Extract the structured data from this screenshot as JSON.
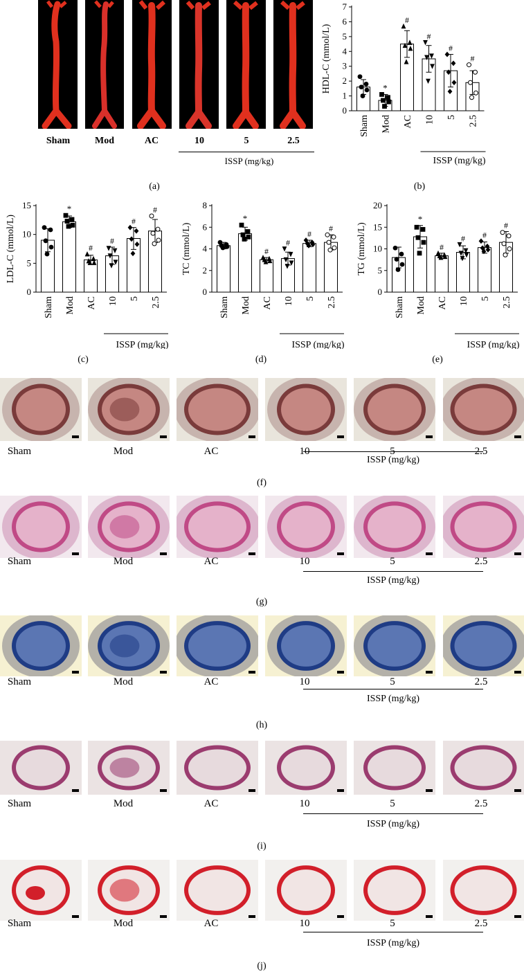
{
  "groups": [
    "Sham",
    "Mod",
    "AC",
    "10",
    "5",
    "2.5"
  ],
  "issp_label": "ISSP (mg/kg)",
  "panels": {
    "a": "(a)",
    "b": "(b)",
    "c": "(c)",
    "d": "(d)",
    "e": "(e)",
    "f": "(f)",
    "g": "(g)",
    "h": "(h)",
    "i": "(i)",
    "j": "(j)"
  },
  "markers": {
    "mod": "*",
    "treated": "#"
  },
  "colors": {
    "aorta_red": "#e0301e",
    "oil_red_bg": "#e6e2da",
    "he_pink": "#d76a9b",
    "masson_blue": "#2b3f8a",
    "masson_bg": "#f3efd0",
    "elastic_purple": "#9b3c6f",
    "picro_red": "#d21f2a"
  },
  "chart_data": [
    {
      "id": "b",
      "type": "bar",
      "categories": [
        "Sham",
        "Mod",
        "AC",
        "10",
        "5",
        "2.5"
      ],
      "values": [
        1.6,
        0.7,
        4.5,
        3.5,
        2.7,
        1.9
      ],
      "errors": [
        0.5,
        0.4,
        0.9,
        0.9,
        1.1,
        0.8
      ],
      "points": [
        [
          2.3,
          1.8,
          1.6,
          1.4,
          1.0
        ],
        [
          1.1,
          0.9,
          0.7,
          0.6,
          0.3
        ],
        [
          5.7,
          4.6,
          4.4,
          4.2,
          3.3
        ],
        [
          4.6,
          3.7,
          3.6,
          3.0,
          2.0
        ],
        [
          3.8,
          3.2,
          2.6,
          1.9,
          1.3
        ],
        [
          3.1,
          2.6,
          1.9,
          1.2,
          0.9
        ]
      ],
      "markers": [
        "",
        "*",
        "#",
        "#",
        "#",
        "#"
      ],
      "ylabel": "HDL-C (mmol/L)",
      "ylim": [
        0,
        7
      ],
      "yticks": [
        "0",
        "1",
        "2",
        "3",
        "4",
        "5",
        "6",
        "7"
      ],
      "xlabel": "",
      "issp_label": "ISSP (mg/kg)"
    },
    {
      "id": "c",
      "type": "bar",
      "categories": [
        "Sham",
        "Mod",
        "AC",
        "10",
        "5",
        "2.5"
      ],
      "values": [
        9.0,
        12.2,
        5.6,
        6.3,
        9.3,
        10.6
      ],
      "errors": [
        2.0,
        1.0,
        0.8,
        1.5,
        1.9,
        2.0
      ],
      "points": [
        [
          11.2,
          10.8,
          8.9,
          7.8,
          6.6
        ],
        [
          13.3,
          12.6,
          12.3,
          11.6,
          11.4
        ],
        [
          6.6,
          5.8,
          5.4,
          5.1,
          5.1
        ],
        [
          7.6,
          7.2,
          6.3,
          5.2,
          4.6
        ],
        [
          11.2,
          10.6,
          9.2,
          8.3,
          6.7
        ],
        [
          13.2,
          10.9,
          10.2,
          9.0,
          8.4
        ]
      ],
      "markers": [
        "",
        "*",
        "#",
        "#",
        "#",
        "#"
      ],
      "ylabel": "LDL-C (mmol/L)",
      "ylim": [
        0,
        15
      ],
      "yticks": [
        "0",
        "5",
        "10",
        "15"
      ],
      "xlabel": "",
      "issp_label": "ISSP (mg/kg)"
    },
    {
      "id": "d",
      "type": "bar",
      "categories": [
        "Sham",
        "Mod",
        "AC",
        "10",
        "5",
        "2.5"
      ],
      "values": [
        4.3,
        5.4,
        3.0,
        3.1,
        4.5,
        4.6
      ],
      "errors": [
        0.3,
        0.6,
        0.2,
        0.6,
        0.3,
        0.7
      ],
      "points": [
        [
          4.6,
          4.4,
          4.3,
          4.2,
          4.1
        ],
        [
          6.2,
          5.6,
          5.3,
          5.1,
          4.9
        ],
        [
          3.2,
          3.1,
          3.0,
          2.9,
          2.8
        ],
        [
          4.0,
          3.5,
          3.0,
          2.7,
          2.4
        ],
        [
          4.8,
          4.6,
          4.5,
          4.4,
          4.3
        ],
        [
          5.3,
          5.1,
          4.6,
          4.1,
          3.9
        ]
      ],
      "markers": [
        "",
        "*",
        "#",
        "#",
        "#",
        "#"
      ],
      "ylabel": "TC (mmol/L)",
      "ylim": [
        0,
        8
      ],
      "yticks": [
        "0",
        "2",
        "4",
        "6",
        "8"
      ],
      "xlabel": "",
      "issp_label": "ISSP (mg/kg)"
    },
    {
      "id": "e",
      "type": "bar",
      "categories": [
        "Sham",
        "Mod",
        "AC",
        "10",
        "5",
        "2.5"
      ],
      "values": [
        8.0,
        12.8,
        8.4,
        9.2,
        10.3,
        11.5
      ],
      "errors": [
        2.4,
        2.6,
        0.6,
        1.5,
        1.3,
        2.5
      ],
      "points": [
        [
          10.2,
          8.8,
          7.6,
          6.4,
          5.2
        ],
        [
          15.0,
          14.5,
          12.6,
          11.5,
          9.0
        ],
        [
          9.0,
          8.6,
          8.4,
          8.2,
          8.0
        ],
        [
          11.0,
          9.6,
          9.0,
          8.6,
          7.8
        ],
        [
          11.8,
          10.6,
          10.2,
          9.8,
          9.4
        ],
        [
          13.8,
          13.0,
          11.2,
          10.0,
          8.6
        ]
      ],
      "markers": [
        "",
        "*",
        "#",
        "#",
        "#",
        "#"
      ],
      "ylabel": "TG (mmol/L)",
      "ylim": [
        0,
        20
      ],
      "yticks": [
        "0",
        "5",
        "10",
        "15",
        "20"
      ],
      "xlabel": "",
      "issp_label": "ISSP (mg/kg)"
    }
  ]
}
